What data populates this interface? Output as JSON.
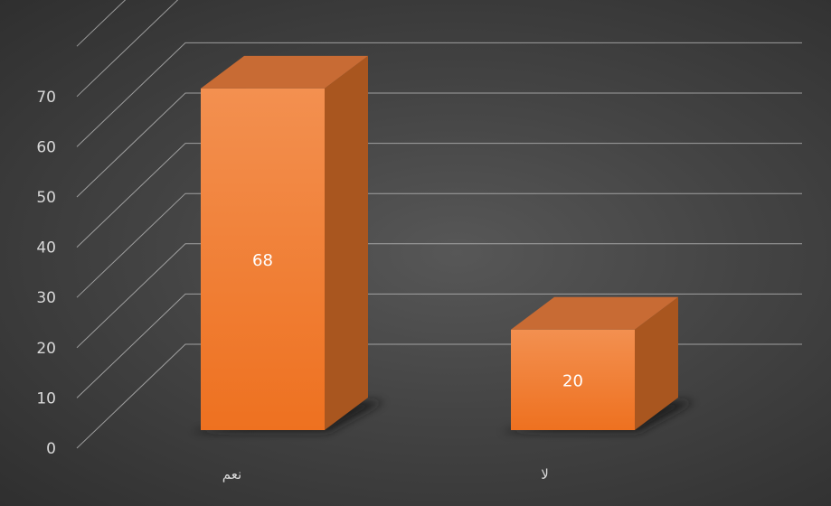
{
  "chart_data": {
    "type": "bar",
    "categories": [
      "نعم",
      "لا"
    ],
    "series": [
      {
        "values": [
          68,
          20
        ]
      }
    ],
    "data_labels": [
      "68",
      "20"
    ],
    "yticks": [
      "0",
      "10",
      "20",
      "30",
      "40",
      "50",
      "60",
      "70"
    ],
    "ylim": [
      0,
      80
    ],
    "grid": true,
    "style": "3d-column",
    "colors": {
      "bar_front": "#f07a24",
      "bar_front_light": "#f39050",
      "bar_top": "#c86b34",
      "bar_side": "#a9561f",
      "grid": "#bfbfbf",
      "background": "#444444"
    }
  }
}
